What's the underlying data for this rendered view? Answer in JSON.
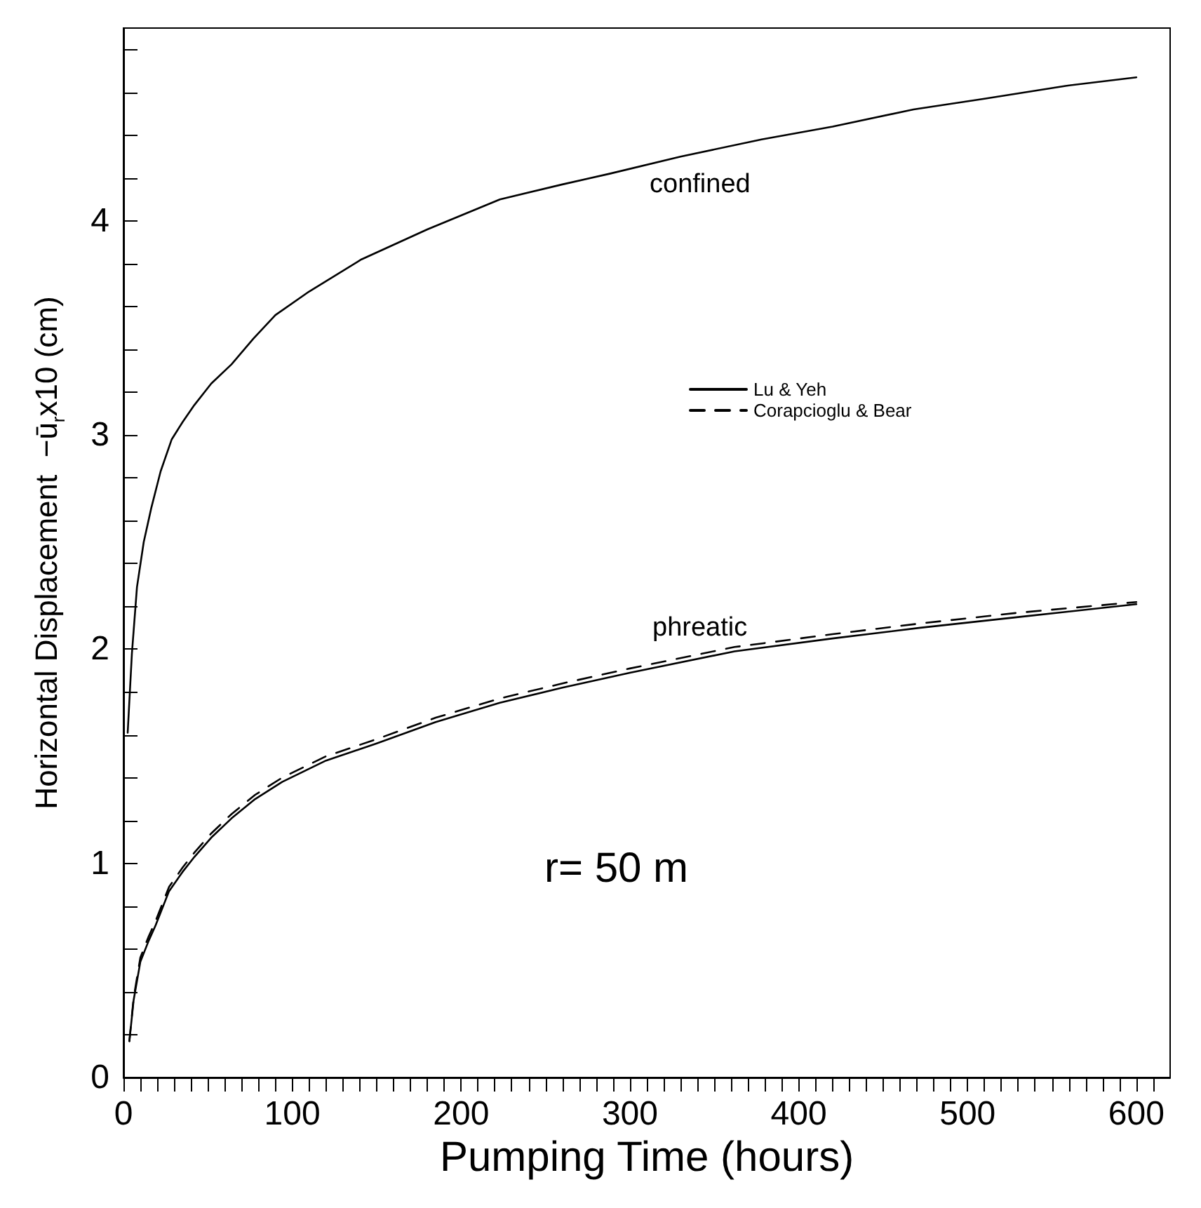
{
  "chart_data": {
    "type": "line",
    "xlabel": "Pumping Time (hours)",
    "ylabel": "Horizontal Displacement  −ū$_{r}$x10 (cm)",
    "xlim": [
      0,
      620
    ],
    "xticks": [
      0,
      {
        "value": 10,
        "label": null
      },
      {
        "value": 20,
        "label": null
      },
      {
        "value": 30,
        "label": null
      },
      {
        "value": 40,
        "label": null
      },
      {
        "value": 50,
        "label": null
      },
      {
        "value": 60,
        "label": null
      },
      {
        "value": 70,
        "label": null
      },
      {
        "value": 80,
        "label": null
      },
      {
        "value": 90,
        "label": null
      },
      100,
      {
        "value": 110,
        "label": null
      },
      {
        "value": 120,
        "label": null
      },
      {
        "value": 130,
        "label": null
      },
      {
        "value": 140,
        "label": null
      },
      {
        "value": 150,
        "label": null
      },
      {
        "value": 160,
        "label": null
      },
      {
        "value": 170,
        "label": null
      },
      {
        "value": 180,
        "label": null
      },
      {
        "value": 190,
        "label": null
      },
      200,
      {
        "value": 210,
        "label": null
      },
      {
        "value": 220,
        "label": null
      },
      {
        "value": 230,
        "label": null
      },
      {
        "value": 240,
        "label": null
      },
      {
        "value": 250,
        "label": null
      },
      {
        "value": 260,
        "label": null
      },
      {
        "value": 270,
        "label": null
      },
      {
        "value": 280,
        "label": null
      },
      {
        "value": 290,
        "label": null
      },
      300,
      {
        "value": 310,
        "label": null
      },
      {
        "value": 320,
        "label": null
      },
      {
        "value": 330,
        "label": null
      },
      {
        "value": 340,
        "label": null
      },
      {
        "value": 350,
        "label": null
      },
      {
        "value": 360,
        "label": null
      },
      {
        "value": 370,
        "label": null
      },
      {
        "value": 380,
        "label": null
      },
      {
        "value": 390,
        "label": null
      },
      400,
      {
        "value": 410,
        "label": null
      },
      {
        "value": 420,
        "label": null
      },
      {
        "value": 430,
        "label": null
      },
      {
        "value": 440,
        "label": null
      },
      {
        "value": 450,
        "label": null
      },
      {
        "value": 460,
        "label": null
      },
      {
        "value": 470,
        "label": null
      },
      {
        "value": 480,
        "label": null
      },
      {
        "value": 490,
        "label": null
      },
      500,
      {
        "value": 510,
        "label": null
      },
      {
        "value": 520,
        "label": null
      },
      {
        "value": 530,
        "label": null
      },
      {
        "value": 540,
        "label": null
      },
      {
        "value": 550,
        "label": null
      },
      {
        "value": 560,
        "label": null
      },
      {
        "value": 570,
        "label": null
      },
      {
        "value": 580,
        "label": null
      },
      {
        "value": 590,
        "label": null
      },
      600,
      {
        "value": 610,
        "label": null
      }
    ],
    "ylim": [
      0,
      4.9
    ],
    "yticks": [
      0,
      {
        "value": 0.2,
        "label": null
      },
      {
        "value": 0.4,
        "label": null
      },
      {
        "value": 0.6,
        "label": null
      },
      {
        "value": 0.8,
        "label": null
      },
      1,
      {
        "value": 1.2,
        "label": null
      },
      {
        "value": 1.4,
        "label": null
      },
      {
        "value": 1.6,
        "label": null
      },
      {
        "value": 1.8,
        "label": null
      },
      2,
      {
        "value": 2.2,
        "label": null
      },
      {
        "value": 2.4,
        "label": null
      },
      {
        "value": 2.6,
        "label": null
      },
      {
        "value": 2.8,
        "label": null
      },
      3,
      {
        "value": 3.2,
        "label": null
      },
      {
        "value": 3.4,
        "label": null
      },
      {
        "value": 3.6,
        "label": null
      },
      {
        "value": 3.8,
        "label": null
      },
      4,
      {
        "value": 4.2,
        "label": null
      },
      {
        "value": 4.4,
        "label": null
      },
      {
        "value": 4.6,
        "label": null
      },
      {
        "value": 4.8,
        "label": null
      }
    ],
    "marker": "none",
    "legend": "right",
    "series": [
      {
        "name": "Lu & Yeh",
        "color": "#000000",
        "line_style": "solid",
        "x": [
          2.5,
          5,
          8,
          12,
          16.5,
          22,
          28.6,
          35,
          42,
          52,
          64,
          77,
          90,
          110,
          141,
          180,
          223,
          260,
          288,
          330,
          378,
          420,
          468,
          510,
          558,
          600
        ],
        "values": [
          1.61,
          1.98,
          2.29,
          2.5,
          2.66,
          2.83,
          2.98,
          3.06,
          3.14,
          3.24,
          3.33,
          3.45,
          3.56,
          3.67,
          3.82,
          3.96,
          4.1,
          4.17,
          4.22,
          4.3,
          4.38,
          4.44,
          4.52,
          4.57,
          4.63,
          4.67
        ]
      },
      {
        "name": "Corapcioglu & Bear",
        "color": "#000000",
        "line_style": "dashed",
        "x": [
          3.5,
          6,
          10,
          15,
          19,
          27,
          35,
          42,
          52,
          64,
          78,
          94,
          120,
          150,
          185,
          223,
          260,
          300,
          362,
          420,
          472,
          530,
          600
        ],
        "values": [
          0.17,
          0.37,
          0.56,
          0.66,
          0.73,
          0.89,
          0.98,
          1.05,
          1.14,
          1.23,
          1.32,
          1.4,
          1.5,
          1.58,
          1.68,
          1.77,
          1.84,
          1.91,
          2.01,
          2.07,
          2.12,
          2.17,
          2.22
        ]
      },
      {
        "color": "#000000",
        "line_style": "solid",
        "x": [
          3.5,
          6,
          10,
          15,
          19,
          27,
          35,
          42,
          52,
          64,
          78,
          94,
          120,
          150,
          185,
          223,
          260,
          300,
          362,
          420,
          472,
          530,
          600
        ],
        "values": [
          0.17,
          0.36,
          0.54,
          0.64,
          0.71,
          0.87,
          0.96,
          1.03,
          1.12,
          1.21,
          1.3,
          1.38,
          1.48,
          1.56,
          1.66,
          1.75,
          1.82,
          1.89,
          1.99,
          2.05,
          2.1,
          2.15,
          2.21
        ]
      }
    ],
    "annotations": [
      "confined",
      "phreatic",
      "r= 50 m"
    ]
  }
}
